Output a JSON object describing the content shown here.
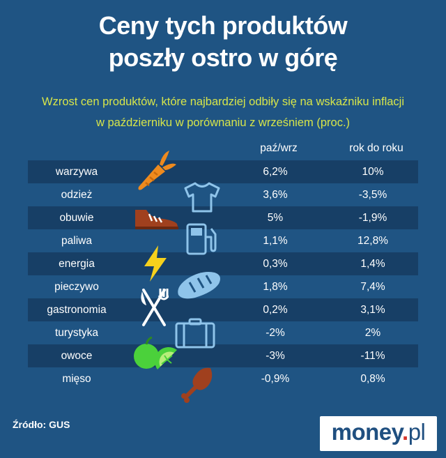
{
  "title_line1": "Ceny tych produktów",
  "title_line2": "poszły ostro w górę",
  "subtitle_line1": "Wzrost cen produktów, które najbardziej odbiły się na wskaźniku inflacji",
  "subtitle_line2": "w październiku w porównaniu z wrześniem (proc.)",
  "colors": {
    "background": "#1f5483",
    "row_dark": "#173f66",
    "subtitle": "#d7e54a",
    "icon": "#8fc4ea"
  },
  "chart_data": {
    "type": "table",
    "columns": [
      "paź/wrz",
      "rok do roku"
    ],
    "rows": [
      {
        "label": "warzywa",
        "m": "6,2%",
        "y": "10%",
        "icon": "carrot-icon"
      },
      {
        "label": "odzież",
        "m": "3,6%",
        "y": "-3,5%",
        "icon": "tshirt-icon"
      },
      {
        "label": "obuwie",
        "m": "5%",
        "y": "-1,9%",
        "icon": "shoe-icon"
      },
      {
        "label": "paliwa",
        "m": "1,1%",
        "y": "12,8%",
        "icon": "fuel-pump-icon"
      },
      {
        "label": "energia",
        "m": "0,3%",
        "y": "1,4%",
        "icon": "lightning-icon"
      },
      {
        "label": "pieczywo",
        "m": "1,8%",
        "y": "7,4%",
        "icon": "bread-icon"
      },
      {
        "label": "gastronomia",
        "m": "0,2%",
        "y": "3,1%",
        "icon": "fork-knife-icon"
      },
      {
        "label": "turystyka",
        "m": "-2%",
        "y": "2%",
        "icon": "suitcase-icon"
      },
      {
        "label": "owoce",
        "m": "-3%",
        "y": "-11%",
        "icon": "apple-lime-icon"
      },
      {
        "label": "mięso",
        "m": "-0,9%",
        "y": "0,8%",
        "icon": "drumstick-icon"
      }
    ]
  },
  "source": "Źródło: GUS",
  "logo": {
    "main": "money",
    "dot": ".",
    "tld": "pl"
  }
}
